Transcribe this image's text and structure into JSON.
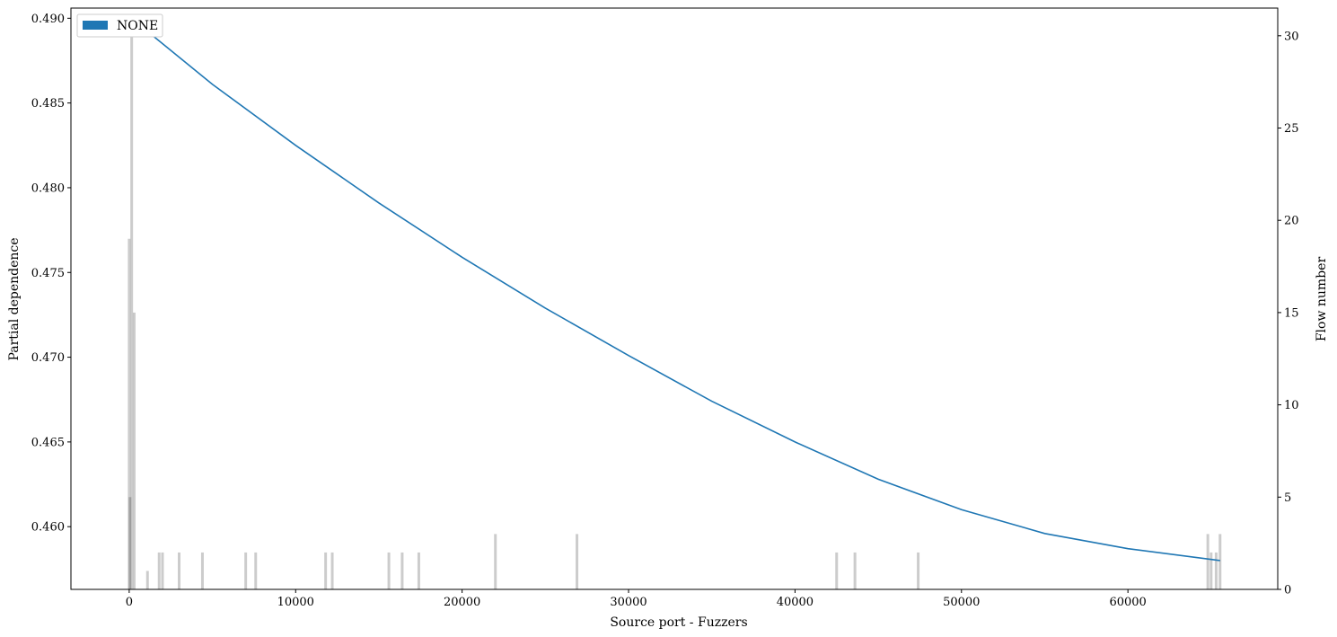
{
  "chart_data": {
    "type": "line",
    "xlabel": "Source port - Fuzzers",
    "ylabel": "Partial dependence",
    "y2label": "Flow number",
    "xlim": [
      -3500,
      69000
    ],
    "ylim": [
      0.4563,
      0.4906
    ],
    "y2lim": [
      0,
      31.5
    ],
    "x_ticks": [
      0,
      10000,
      20000,
      30000,
      40000,
      50000,
      60000
    ],
    "y_ticks": [
      0.46,
      0.465,
      0.47,
      0.475,
      0.48,
      0.485,
      0.49
    ],
    "y2_ticks": [
      0,
      5,
      10,
      15,
      20,
      25,
      30
    ],
    "x_tick_labels": [
      "0",
      "10000",
      "20000",
      "30000",
      "40000",
      "50000",
      "60000"
    ],
    "y_tick_labels": [
      "0.460",
      "0.465",
      "0.470",
      "0.475",
      "0.480",
      "0.485",
      "0.490"
    ],
    "y2_tick_labels": [
      "0",
      "5",
      "10",
      "15",
      "20",
      "25",
      "30"
    ],
    "legend": {
      "label": "NONE",
      "location": "upper-left",
      "color": "#1f77b4"
    },
    "series": [
      {
        "name": "NONE",
        "color": "#1f77b4",
        "kind": "partial-dependence-line",
        "x": [
          0,
          5000,
          10000,
          15000,
          20000,
          25000,
          30000,
          35000,
          40000,
          45000,
          50000,
          55000,
          60000,
          65535
        ],
        "values": [
          0.4901,
          0.4861,
          0.4825,
          0.4791,
          0.4759,
          0.4729,
          0.4701,
          0.4674,
          0.465,
          0.4628,
          0.461,
          0.4596,
          0.4587,
          0.458
        ]
      },
      {
        "name": "",
        "color": "#000000",
        "kind": "flow-count-histogram",
        "x": [
          0,
          50,
          150,
          300,
          1100,
          1800,
          2000,
          3000,
          4400,
          7000,
          7600,
          11800,
          12200,
          15600,
          16400,
          17400,
          22000,
          26900,
          42500,
          43600,
          47400,
          64800,
          65000,
          65300,
          65535
        ],
        "values": [
          19,
          5,
          30,
          15,
          1,
          2,
          2,
          2,
          2,
          2,
          2,
          2,
          2,
          2,
          2,
          2,
          3,
          3,
          2,
          2,
          2,
          3,
          2,
          2,
          3
        ]
      }
    ],
    "grid": false
  }
}
